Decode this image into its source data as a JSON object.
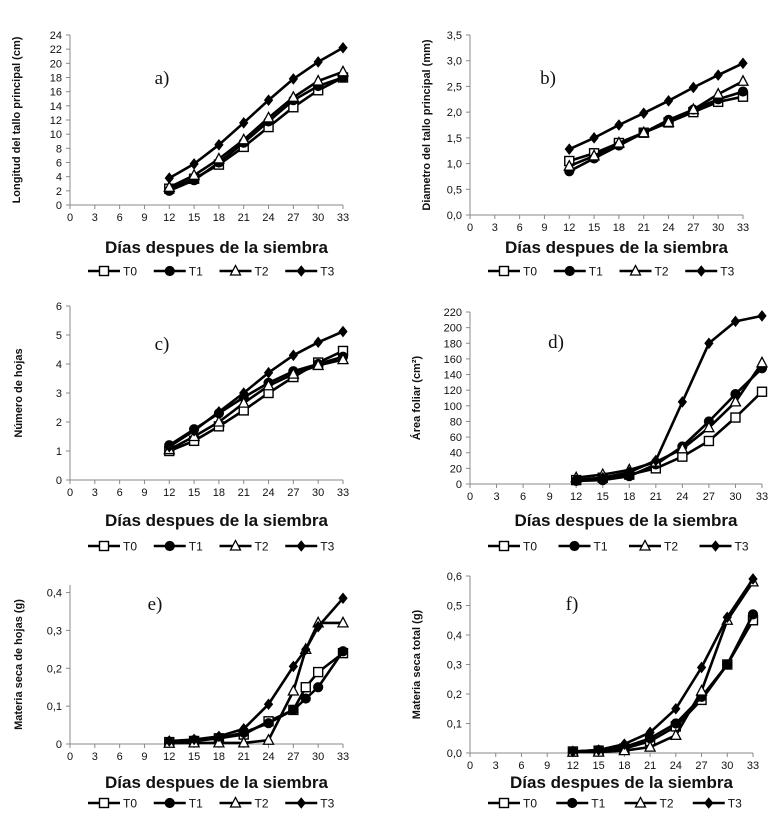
{
  "chart_data": [
    {
      "type": "line",
      "panel_label": "a)",
      "xlabel": "Días despues de la siembra",
      "ylabel": "Longitud del tallo principal (cm)",
      "x_ticks": [
        "0",
        "3",
        "6",
        "9",
        "12",
        "15",
        "18",
        "21",
        "24",
        "27",
        "30",
        "33"
      ],
      "y_ticks": [
        "0",
        "2",
        "4",
        "6",
        "8",
        "10",
        "12",
        "14",
        "16",
        "18",
        "20",
        "22",
        "24"
      ],
      "xlim": [
        0,
        33
      ],
      "ylim": [
        0,
        24
      ],
      "x": [
        12,
        15,
        18,
        21,
        24,
        27,
        30,
        33
      ],
      "series": [
        {
          "name": "T0",
          "marker": "square-open",
          "values": [
            2.3,
            3.7,
            5.7,
            8.2,
            11.0,
            13.8,
            16.2,
            18.0
          ]
        },
        {
          "name": "T1",
          "marker": "circle-filled",
          "values": [
            2.0,
            3.5,
            6.0,
            8.8,
            11.8,
            14.8,
            16.8,
            18.0
          ]
        },
        {
          "name": "T2",
          "marker": "triangle-open",
          "values": [
            2.5,
            4.2,
            6.5,
            9.2,
            12.3,
            15.2,
            17.5,
            18.8
          ]
        },
        {
          "name": "T3",
          "marker": "diamond-filled",
          "values": [
            3.8,
            5.8,
            8.5,
            11.6,
            14.8,
            17.8,
            20.2,
            22.2
          ]
        }
      ],
      "grid": false,
      "legend": [
        "T0",
        "T1",
        "T2",
        "T3"
      ],
      "legend_position": "bottom"
    },
    {
      "type": "line",
      "panel_label": "b)",
      "xlabel": "Días despues de la siembra",
      "ylabel": "Diametro del tallo principal (mm)",
      "x_ticks": [
        "0",
        "3",
        "6",
        "9",
        "12",
        "15",
        "18",
        "21",
        "24",
        "27",
        "30",
        "33"
      ],
      "y_ticks": [
        "0,0",
        "0,5",
        "1,0",
        "1,5",
        "2,0",
        "2,5",
        "3,0",
        "3,5"
      ],
      "xlim": [
        0,
        33
      ],
      "ylim": [
        0,
        3.5
      ],
      "x": [
        12,
        15,
        18,
        21,
        24,
        27,
        30,
        33
      ],
      "series": [
        {
          "name": "T0",
          "marker": "square-open",
          "values": [
            1.05,
            1.2,
            1.4,
            1.6,
            1.8,
            2.0,
            2.2,
            2.3
          ]
        },
        {
          "name": "T1",
          "marker": "circle-filled",
          "values": [
            0.85,
            1.1,
            1.35,
            1.6,
            1.85,
            2.05,
            2.25,
            2.4
          ]
        },
        {
          "name": "T2",
          "marker": "triangle-open",
          "values": [
            0.95,
            1.15,
            1.4,
            1.6,
            1.8,
            2.05,
            2.35,
            2.6
          ]
        },
        {
          "name": "T3",
          "marker": "diamond-filled",
          "values": [
            1.28,
            1.5,
            1.75,
            1.98,
            2.22,
            2.48,
            2.72,
            2.95
          ]
        }
      ],
      "grid": false,
      "legend": [
        "T0",
        "T1",
        "T2",
        "T3"
      ],
      "legend_position": "bottom"
    },
    {
      "type": "line",
      "panel_label": "c)",
      "xlabel": "Días despues de la siembra",
      "ylabel": "Número de hojas",
      "x_ticks": [
        "0",
        "3",
        "6",
        "9",
        "12",
        "15",
        "18",
        "21",
        "24",
        "27",
        "30",
        "33"
      ],
      "y_ticks": [
        "0",
        "1",
        "2",
        "3",
        "4",
        "5",
        "6"
      ],
      "xlim": [
        0,
        33
      ],
      "ylim": [
        0,
        6
      ],
      "x": [
        12,
        15,
        18,
        21,
        24,
        27,
        30,
        33
      ],
      "series": [
        {
          "name": "T0",
          "marker": "square-open",
          "values": [
            1.0,
            1.35,
            1.85,
            2.4,
            3.0,
            3.55,
            4.05,
            4.45
          ]
        },
        {
          "name": "T1",
          "marker": "circle-filled",
          "values": [
            1.2,
            1.75,
            2.3,
            2.85,
            3.35,
            3.75,
            4.0,
            4.25
          ]
        },
        {
          "name": "T2",
          "marker": "triangle-open",
          "values": [
            1.05,
            1.5,
            2.0,
            2.65,
            3.25,
            3.65,
            3.95,
            4.15
          ]
        },
        {
          "name": "T3",
          "marker": "diamond-filled",
          "values": [
            1.15,
            1.7,
            2.35,
            3.0,
            3.7,
            4.3,
            4.75,
            5.12
          ]
        }
      ],
      "grid": false,
      "legend": [
        "T0",
        "T1",
        "T2",
        "T3"
      ],
      "legend_position": "bottom"
    },
    {
      "type": "line",
      "panel_label": "d)",
      "xlabel": "Días despues de la siembra",
      "ylabel": "Área foliar (cm²)",
      "x_ticks": [
        "0",
        "3",
        "6",
        "9",
        "12",
        "15",
        "18",
        "21",
        "24",
        "27",
        "30",
        "33"
      ],
      "y_ticks": [
        "0",
        "20",
        "40",
        "60",
        "80",
        "100",
        "120",
        "140",
        "160",
        "180",
        "200",
        "220"
      ],
      "xlim": [
        0,
        33
      ],
      "ylim": [
        0,
        220
      ],
      "x": [
        12,
        15,
        18,
        21,
        24,
        27,
        30,
        33
      ],
      "series": [
        {
          "name": "T0",
          "marker": "square-open",
          "values": [
            5,
            8,
            12,
            20,
            35,
            55,
            85,
            118
          ]
        },
        {
          "name": "T1",
          "marker": "circle-filled",
          "values": [
            4,
            5,
            10,
            25,
            48,
            80,
            115,
            148
          ]
        },
        {
          "name": "T2",
          "marker": "triangle-open",
          "values": [
            8,
            12,
            18,
            28,
            45,
            72,
            105,
            155
          ]
        },
        {
          "name": "T3",
          "marker": "diamond-filled",
          "values": [
            5,
            8,
            15,
            30,
            105,
            180,
            208,
            215
          ]
        }
      ],
      "grid": false,
      "legend": [
        "T0",
        "T1",
        "T2",
        "T3"
      ],
      "legend_position": "bottom"
    },
    {
      "type": "line",
      "panel_label": "e)",
      "xlabel": "Días despues de la siembra",
      "ylabel": "Materia seca de hojas (g)",
      "x_ticks": [
        "0",
        "3",
        "6",
        "9",
        "12",
        "15",
        "18",
        "21",
        "24",
        "27",
        "30",
        "33"
      ],
      "y_ticks": [
        "0",
        "0,1",
        "0,2",
        "0,3",
        "0,4"
      ],
      "xlim": [
        0,
        33
      ],
      "ylim": [
        0,
        0.42
      ],
      "x": [
        12,
        15,
        18,
        21,
        24,
        27,
        28.5,
        30,
        33
      ],
      "series": [
        {
          "name": "T0",
          "marker": "square-open",
          "values": [
            0.005,
            0.008,
            0.015,
            0.025,
            0.06,
            0.09,
            0.15,
            0.19,
            0.24
          ]
        },
        {
          "name": "T1",
          "marker": "circle-filled",
          "values": [
            0.005,
            0.01,
            0.015,
            0.03,
            0.055,
            0.09,
            0.12,
            0.15,
            0.245
          ]
        },
        {
          "name": "T2",
          "marker": "triangle-open",
          "values": [
            0.002,
            0.003,
            0.003,
            0.003,
            0.01,
            0.14,
            0.25,
            0.32,
            0.32
          ]
        },
        {
          "name": "T3",
          "marker": "diamond-filled",
          "values": [
            0.008,
            0.012,
            0.02,
            0.04,
            0.105,
            0.205,
            0.25,
            0.31,
            0.385
          ]
        }
      ],
      "grid": false,
      "legend": [
        "T0",
        "T1",
        "T2",
        "T3"
      ],
      "legend_position": "bottom"
    },
    {
      "type": "line",
      "panel_label": "f)",
      "xlabel": "Días despues de la siembra",
      "ylabel": "Materia seca total (g)",
      "x_ticks": [
        "0",
        "3",
        "6",
        "9",
        "12",
        "15",
        "18",
        "21",
        "24",
        "27",
        "30",
        "33"
      ],
      "y_ticks": [
        "0,0",
        "0,1",
        "0,2",
        "0,3",
        "0,4",
        "0,5",
        "0,6"
      ],
      "xlim": [
        0,
        33
      ],
      "ylim": [
        0,
        0.6
      ],
      "x": [
        12,
        15,
        18,
        21,
        24,
        27,
        30,
        33
      ],
      "series": [
        {
          "name": "T0",
          "marker": "square-open",
          "values": [
            0.005,
            0.008,
            0.015,
            0.04,
            0.09,
            0.18,
            0.3,
            0.45
          ]
        },
        {
          "name": "T1",
          "marker": "circle-filled",
          "values": [
            0.005,
            0.01,
            0.02,
            0.05,
            0.1,
            0.19,
            0.3,
            0.47
          ]
        },
        {
          "name": "T2",
          "marker": "triangle-open",
          "values": [
            0.003,
            0.003,
            0.008,
            0.02,
            0.06,
            0.21,
            0.45,
            0.58
          ]
        },
        {
          "name": "T3",
          "marker": "diamond-filled",
          "values": [
            0.005,
            0.01,
            0.03,
            0.07,
            0.15,
            0.29,
            0.46,
            0.59
          ]
        }
      ],
      "grid": false,
      "legend": [
        "T0",
        "T1",
        "T2",
        "T3"
      ],
      "legend_position": "bottom"
    }
  ]
}
